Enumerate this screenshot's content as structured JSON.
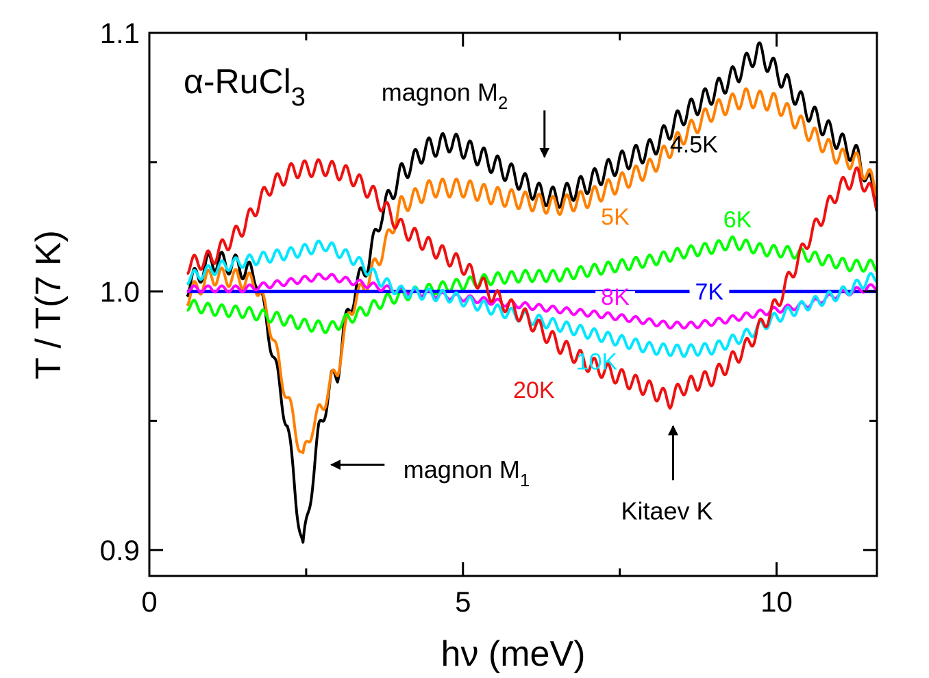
{
  "chart_data": {
    "type": "line",
    "title": "α-RuCl3",
    "title_parts": {
      "alpha": "α",
      "main": "-RuCl",
      "sub": "3"
    },
    "xlabel": "hν (meV)",
    "ylabel": "T / T(7 K)",
    "xlim": [
      0,
      11.6
    ],
    "ylim": [
      0.89,
      1.1
    ],
    "x_ticks": [
      0,
      5,
      10
    ],
    "x_tick_labels": [
      "0",
      "5",
      "10"
    ],
    "x_minor_ticks": [
      2.5,
      7.5
    ],
    "y_ticks": [
      0.9,
      1.0,
      1.1
    ],
    "y_tick_labels": [
      "0.9",
      "1.0",
      "1.1"
    ],
    "y_minor_ticks": [
      0.95,
      1.05
    ],
    "x_range": [
      0.6,
      11.6
    ],
    "ripple_period": 0.22,
    "series": [
      {
        "name": "4.5K",
        "label": "4.5K",
        "color": "#000000",
        "label_x": 8.3,
        "label_y": 1.057,
        "ripple": 0.004,
        "points": [
          [
            0.6,
            1.002
          ],
          [
            1.0,
            1.012
          ],
          [
            1.4,
            1.01
          ],
          [
            1.7,
            1.006
          ],
          [
            1.9,
            0.985
          ],
          [
            2.0,
            0.972
          ],
          [
            2.2,
            0.948
          ],
          [
            2.35,
            0.918
          ],
          [
            2.45,
            0.9
          ],
          [
            2.55,
            0.918
          ],
          [
            2.7,
            0.945
          ],
          [
            2.9,
            0.965
          ],
          [
            3.0,
            0.968
          ],
          [
            3.1,
            0.985
          ],
          [
            3.3,
            1.002
          ],
          [
            3.5,
            1.012
          ],
          [
            3.7,
            1.03
          ],
          [
            4.0,
            1.045
          ],
          [
            4.4,
            1.055
          ],
          [
            4.8,
            1.058
          ],
          [
            5.3,
            1.052
          ],
          [
            5.8,
            1.045
          ],
          [
            6.2,
            1.038
          ],
          [
            6.5,
            1.036
          ],
          [
            7.0,
            1.042
          ],
          [
            7.5,
            1.05
          ],
          [
            8.0,
            1.055
          ],
          [
            8.5,
            1.068
          ],
          [
            9.0,
            1.077
          ],
          [
            9.4,
            1.085
          ],
          [
            9.7,
            1.093
          ],
          [
            10.0,
            1.085
          ],
          [
            10.5,
            1.07
          ],
          [
            11.0,
            1.058
          ],
          [
            11.3,
            1.052
          ],
          [
            11.6,
            1.035
          ]
        ]
      },
      {
        "name": "5K",
        "label": "5K",
        "color": "#ff8000",
        "label_x": 7.2,
        "label_y": 1.029,
        "ripple": 0.0035,
        "points": [
          [
            0.6,
            0.998
          ],
          [
            1.0,
            1.006
          ],
          [
            1.4,
            1.005
          ],
          [
            1.7,
            1.003
          ],
          [
            1.9,
            0.99
          ],
          [
            2.1,
            0.968
          ],
          [
            2.3,
            0.95
          ],
          [
            2.45,
            0.935
          ],
          [
            2.6,
            0.948
          ],
          [
            2.75,
            0.955
          ],
          [
            2.9,
            0.965
          ],
          [
            3.0,
            0.97
          ],
          [
            3.2,
            0.993
          ],
          [
            3.5,
            1.005
          ],
          [
            3.8,
            1.02
          ],
          [
            4.0,
            1.033
          ],
          [
            4.5,
            1.04
          ],
          [
            5.0,
            1.04
          ],
          [
            5.5,
            1.037
          ],
          [
            6.0,
            1.035
          ],
          [
            6.5,
            1.033
          ],
          [
            7.0,
            1.036
          ],
          [
            7.5,
            1.042
          ],
          [
            8.0,
            1.048
          ],
          [
            8.5,
            1.06
          ],
          [
            9.0,
            1.07
          ],
          [
            9.5,
            1.075
          ],
          [
            10.0,
            1.073
          ],
          [
            10.5,
            1.062
          ],
          [
            11.0,
            1.052
          ],
          [
            11.3,
            1.05
          ],
          [
            11.6,
            1.04
          ]
        ]
      },
      {
        "name": "6K",
        "label": "6K",
        "color": "#00ff00",
        "label_x": 9.15,
        "label_y": 1.028,
        "ripple": 0.0022,
        "points": [
          [
            0.6,
            0.995
          ],
          [
            1.0,
            0.993
          ],
          [
            1.5,
            0.992
          ],
          [
            2.0,
            0.99
          ],
          [
            2.5,
            0.987
          ],
          [
            2.9,
            0.986
          ],
          [
            3.3,
            0.991
          ],
          [
            3.8,
            0.997
          ],
          [
            4.3,
            1.0
          ],
          [
            5.0,
            1.003
          ],
          [
            5.5,
            1.005
          ],
          [
            6.0,
            1.006
          ],
          [
            6.5,
            1.006
          ],
          [
            7.0,
            1.008
          ],
          [
            7.5,
            1.01
          ],
          [
            8.0,
            1.012
          ],
          [
            8.5,
            1.015
          ],
          [
            9.0,
            1.017
          ],
          [
            9.3,
            1.019
          ],
          [
            9.8,
            1.016
          ],
          [
            10.3,
            1.015
          ],
          [
            10.8,
            1.012
          ],
          [
            11.2,
            1.01
          ],
          [
            11.6,
            1.01
          ]
        ]
      },
      {
        "name": "7K",
        "label": "7K",
        "color": "#0000ff",
        "label_x": 8.7,
        "label_y": 1.0,
        "ripple": 0,
        "points": [
          [
            0.6,
            1.0
          ],
          [
            11.6,
            1.0
          ]
        ]
      },
      {
        "name": "8K",
        "label": "8K",
        "color": "#ff00ff",
        "label_x": 7.2,
        "label_y": 0.998,
        "ripple": 0.0012,
        "points": [
          [
            0.6,
            1.001
          ],
          [
            1.5,
            1.001
          ],
          [
            2.3,
            1.004
          ],
          [
            2.8,
            1.006
          ],
          [
            3.2,
            1.004
          ],
          [
            3.8,
            1.001
          ],
          [
            4.5,
            0.999
          ],
          [
            5.5,
            0.996
          ],
          [
            6.5,
            0.993
          ],
          [
            7.2,
            0.991
          ],
          [
            7.8,
            0.989
          ],
          [
            8.3,
            0.987
          ],
          [
            8.7,
            0.987
          ],
          [
            9.2,
            0.989
          ],
          [
            9.8,
            0.992
          ],
          [
            10.5,
            0.995
          ],
          [
            11.0,
            0.999
          ],
          [
            11.6,
            1.002
          ]
        ]
      },
      {
        "name": "10K",
        "label": "10K",
        "color": "#00e6ff",
        "label_x": 6.8,
        "label_y": 0.973,
        "ripple": 0.0022,
        "points": [
          [
            0.6,
            1.005
          ],
          [
            1.2,
            1.01
          ],
          [
            1.8,
            1.013
          ],
          [
            2.3,
            1.015
          ],
          [
            2.8,
            1.018
          ],
          [
            3.3,
            1.012
          ],
          [
            3.7,
            1.004
          ],
          [
            4.0,
            1.0
          ],
          [
            4.8,
            0.998
          ],
          [
            5.5,
            0.993
          ],
          [
            6.0,
            0.99
          ],
          [
            6.5,
            0.987
          ],
          [
            7.0,
            0.984
          ],
          [
            7.5,
            0.981
          ],
          [
            8.0,
            0.978
          ],
          [
            8.5,
            0.977
          ],
          [
            9.0,
            0.978
          ],
          [
            9.5,
            0.983
          ],
          [
            10.0,
            0.99
          ],
          [
            10.5,
            0.995
          ],
          [
            11.0,
            0.999
          ],
          [
            11.6,
            1.006
          ]
        ]
      },
      {
        "name": "20K",
        "label": "20K",
        "color": "#ee1111",
        "label_x": 5.8,
        "label_y": 0.962,
        "ripple": 0.0032,
        "points": [
          [
            0.6,
            1.01
          ],
          [
            1.0,
            1.013
          ],
          [
            1.5,
            1.025
          ],
          [
            1.9,
            1.04
          ],
          [
            2.3,
            1.047
          ],
          [
            2.8,
            1.048
          ],
          [
            3.2,
            1.045
          ],
          [
            3.6,
            1.037
          ],
          [
            4.0,
            1.025
          ],
          [
            4.5,
            1.017
          ],
          [
            5.0,
            1.01
          ],
          [
            5.5,
            0.998
          ],
          [
            6.0,
            0.99
          ],
          [
            6.5,
            0.98
          ],
          [
            7.0,
            0.972
          ],
          [
            7.5,
            0.967
          ],
          [
            8.0,
            0.962
          ],
          [
            8.3,
            0.958
          ],
          [
            8.5,
            0.963
          ],
          [
            9.0,
            0.967
          ],
          [
            9.5,
            0.978
          ],
          [
            10.0,
            0.995
          ],
          [
            10.5,
            1.02
          ],
          [
            11.0,
            1.04
          ],
          [
            11.3,
            1.045
          ],
          [
            11.6,
            1.035
          ]
        ]
      }
    ],
    "annotations": [
      {
        "id": "m1",
        "label_main": "magnon M",
        "label_sub": "1",
        "text_x": 4.05,
        "text_y": 0.931,
        "arrow_from": [
          3.75,
          0.933
        ],
        "arrow_to": [
          2.9,
          0.933
        ]
      },
      {
        "id": "m2",
        "label_main": "magnon M",
        "label_sub": "2",
        "text_x": 3.7,
        "text_y": 1.077,
        "arrow_from": [
          6.3,
          1.07
        ],
        "arrow_to": [
          6.3,
          1.052
        ]
      },
      {
        "id": "kitaev",
        "label_main": "Kitaev K",
        "label_sub": "",
        "text_x": 7.52,
        "text_y": 0.915,
        "arrow_from": [
          8.35,
          0.927
        ],
        "arrow_to": [
          8.35,
          0.948
        ]
      }
    ]
  }
}
